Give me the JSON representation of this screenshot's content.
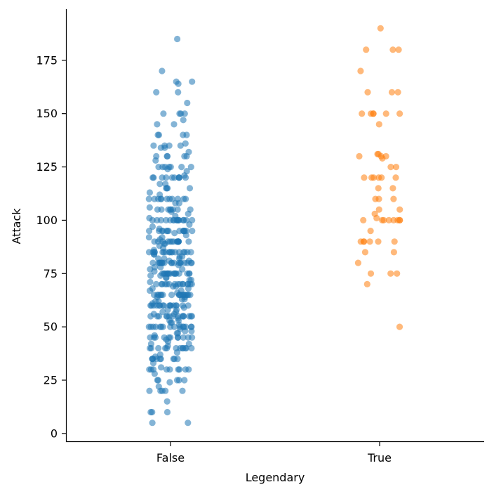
{
  "chart_data": {
    "type": "scatter",
    "subtype": "strip",
    "title": "",
    "xlabel": "Legendary",
    "ylabel": "Attack",
    "categories": [
      "False",
      "True"
    ],
    "ylim": [
      -4,
      199
    ],
    "yticks": [
      0,
      25,
      50,
      75,
      100,
      125,
      150,
      175
    ],
    "grid": false,
    "legend": "none",
    "colors": {
      "False": "#1f77b4",
      "True": "#ff7f0e"
    },
    "marker_alpha": 0.55,
    "series": [
      {
        "category": "False",
        "values": [
          185,
          170,
          165,
          165,
          164,
          160,
          160,
          155,
          150,
          150,
          150,
          150,
          147,
          145,
          145,
          140,
          140,
          140,
          140,
          136,
          135,
          135,
          135,
          135,
          134,
          134,
          132,
          130,
          130,
          130,
          130,
          130,
          128,
          125,
          125,
          125,
          125,
          125,
          125,
          125,
          124,
          123,
          121,
          120,
          120,
          120,
          120,
          120,
          120,
          120,
          120,
          120,
          120,
          117,
          117,
          115,
          115,
          115,
          115,
          113,
          112,
          110,
          110,
          110,
          110,
          110,
          110,
          110,
          110,
          110,
          110,
          110,
          108,
          108,
          106,
          105,
          105,
          105,
          105,
          105,
          105,
          105,
          105,
          104,
          103,
          102,
          101,
          100,
          100,
          100,
          100,
          100,
          100,
          100,
          100,
          100,
          100,
          100,
          100,
          100,
          100,
          100,
          100,
          98,
          97,
          96,
          95,
          95,
          95,
          95,
          95,
          95,
          95,
          95,
          95,
          95,
          95,
          95,
          95,
          95,
          94,
          93,
          92,
          92,
          91,
          90,
          90,
          90,
          90,
          90,
          90,
          90,
          90,
          90,
          90,
          90,
          90,
          90,
          90,
          90,
          89,
          89,
          88,
          87,
          86,
          85,
          85,
          85,
          85,
          85,
          85,
          85,
          85,
          85,
          85,
          85,
          85,
          85,
          85,
          85,
          85,
          85,
          84,
          84,
          83,
          83,
          82,
          82,
          82,
          81,
          81,
          80,
          80,
          80,
          80,
          80,
          80,
          80,
          80,
          80,
          80,
          80,
          80,
          80,
          80,
          80,
          80,
          80,
          80,
          79,
          78,
          78,
          77,
          77,
          76,
          75,
          75,
          75,
          75,
          75,
          75,
          75,
          75,
          75,
          75,
          75,
          75,
          75,
          75,
          75,
          75,
          74,
          74,
          73,
          73,
          72,
          72,
          71,
          70,
          70,
          70,
          70,
          70,
          70,
          70,
          70,
          70,
          70,
          70,
          70,
          70,
          70,
          70,
          69,
          69,
          68,
          68,
          67,
          67,
          66,
          65,
          65,
          65,
          65,
          65,
          65,
          65,
          65,
          65,
          65,
          65,
          65,
          65,
          65,
          65,
          65,
          65,
          64,
          64,
          63,
          63,
          62,
          62,
          61,
          60,
          60,
          60,
          60,
          60,
          60,
          60,
          60,
          60,
          60,
          60,
          60,
          60,
          60,
          60,
          60,
          59,
          58,
          58,
          57,
          57,
          56,
          56,
          55,
          55,
          55,
          55,
          55,
          55,
          55,
          55,
          55,
          55,
          55,
          55,
          55,
          55,
          54,
          53,
          53,
          52,
          52,
          51,
          50,
          50,
          50,
          50,
          50,
          50,
          50,
          50,
          50,
          50,
          50,
          50,
          50,
          50,
          50,
          49,
          48,
          48,
          47,
          47,
          46,
          45,
          45,
          45,
          45,
          45,
          45,
          45,
          45,
          45,
          45,
          45,
          44,
          43,
          42,
          42,
          41,
          40,
          40,
          40,
          40,
          40,
          40,
          40,
          40,
          40,
          40,
          40,
          40,
          38,
          37,
          36,
          35,
          35,
          35,
          35,
          35,
          35,
          35,
          35,
          35,
          33,
          31,
          30,
          30,
          30,
          30,
          30,
          30,
          30,
          30,
          30,
          28,
          25,
          25,
          25,
          25,
          25,
          24,
          22,
          20,
          20,
          20,
          20,
          20,
          15,
          10,
          10,
          10,
          5,
          5
        ]
      },
      {
        "category": "True",
        "values": [
          190,
          180,
          180,
          180,
          170,
          160,
          160,
          160,
          150,
          150,
          150,
          150,
          150,
          150,
          145,
          131,
          131,
          130,
          130,
          130,
          129,
          125,
          125,
          120,
          120,
          120,
          120,
          120,
          120,
          115,
          115,
          110,
          110,
          110,
          105,
          105,
          103,
          101,
          100,
          100,
          100,
          100,
          100,
          100,
          100,
          100,
          95,
          90,
          90,
          90,
          90,
          90,
          90,
          85,
          85,
          80,
          75,
          75,
          75,
          70,
          50
        ]
      }
    ]
  }
}
